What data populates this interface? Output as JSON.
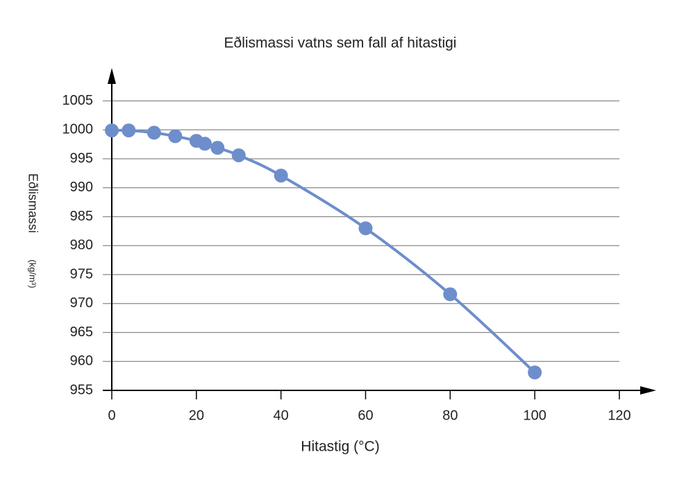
{
  "chart_data": {
    "type": "line",
    "title": "Eðlismassi vatns sem fall af hitastigi",
    "x_label": "Hitastig (°C)",
    "y_label": "Eðlismassi",
    "y_unit": "(kg/m³)",
    "x": [
      0,
      4,
      10,
      15,
      20,
      22,
      25,
      30,
      40,
      60,
      80,
      100
    ],
    "series": [
      {
        "color": "#6d8ecb",
        "values": [
          999.9,
          999.9,
          999.5,
          998.9,
          998.1,
          997.6,
          996.9,
          995.6,
          992.1,
          983.0,
          971.6,
          958.1
        ]
      }
    ],
    "xlim": [
      0,
      120
    ],
    "xticks": [
      0,
      20,
      40,
      60,
      80,
      100,
      120
    ],
    "ylim": [
      955,
      1010
    ],
    "yticks": [
      955,
      960,
      965,
      970,
      975,
      980,
      985,
      990,
      995,
      1000,
      1005
    ],
    "grid": true
  }
}
